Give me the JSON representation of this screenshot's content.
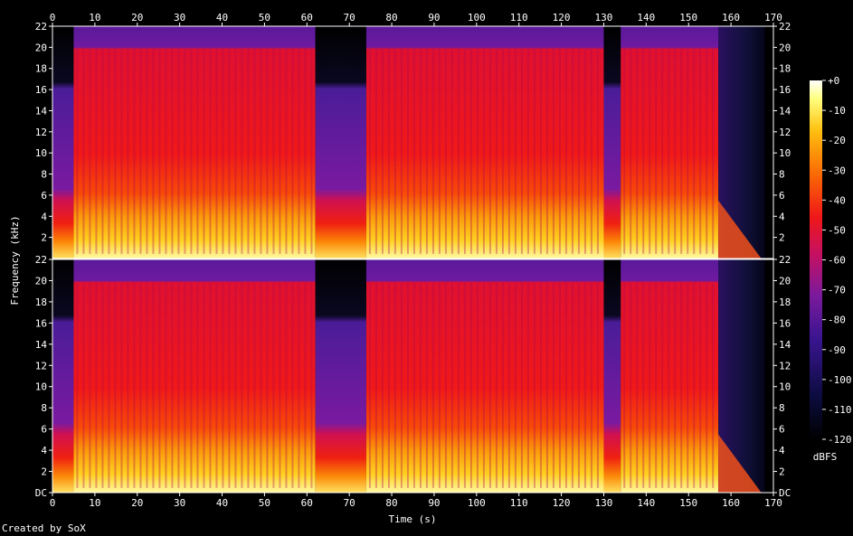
{
  "chart_data": {
    "type": "heatmap",
    "xlabel": "Time (s)",
    "ylabel": "Frequency (kHz)",
    "xlim": [
      0,
      170
    ],
    "x_ticks": [
      "0",
      "10",
      "20",
      "30",
      "40",
      "50",
      "60",
      "70",
      "80",
      "90",
      "100",
      "110",
      "120",
      "130",
      "140",
      "150",
      "160",
      "170"
    ],
    "channels": [
      {
        "ylim": [
          0,
          22
        ],
        "y_ticks": [
          "22",
          "20",
          "18",
          "16",
          "14",
          "12",
          "10",
          "8",
          "6",
          "4",
          "2"
        ]
      },
      {
        "ylim": [
          0,
          22
        ],
        "y_ticks": [
          "22",
          "20",
          "18",
          "16",
          "14",
          "12",
          "10",
          "8",
          "6",
          "4",
          "2",
          "DC"
        ]
      }
    ],
    "colorbar": {
      "label": "dBFS",
      "range": [
        -120,
        0
      ],
      "ticks": [
        "+0",
        "-10",
        "-20",
        "-30",
        "-40",
        "-50",
        "-60",
        "-70",
        "-80",
        "-90",
        "-100",
        "-110",
        "-120"
      ]
    },
    "segments": [
      {
        "start": 0,
        "end": 5,
        "level": "quiet"
      },
      {
        "start": 5,
        "end": 62,
        "level": "loud"
      },
      {
        "start": 62,
        "end": 74,
        "level": "quiet"
      },
      {
        "start": 74,
        "end": 130,
        "level": "loud"
      },
      {
        "start": 130,
        "end": 134,
        "level": "quiet"
      },
      {
        "start": 134,
        "end": 157,
        "level": "loud"
      },
      {
        "start": 157,
        "end": 168,
        "level": "fade"
      },
      {
        "start": 168,
        "end": 170,
        "level": "silent"
      }
    ]
  },
  "credit": "Created by SoX"
}
